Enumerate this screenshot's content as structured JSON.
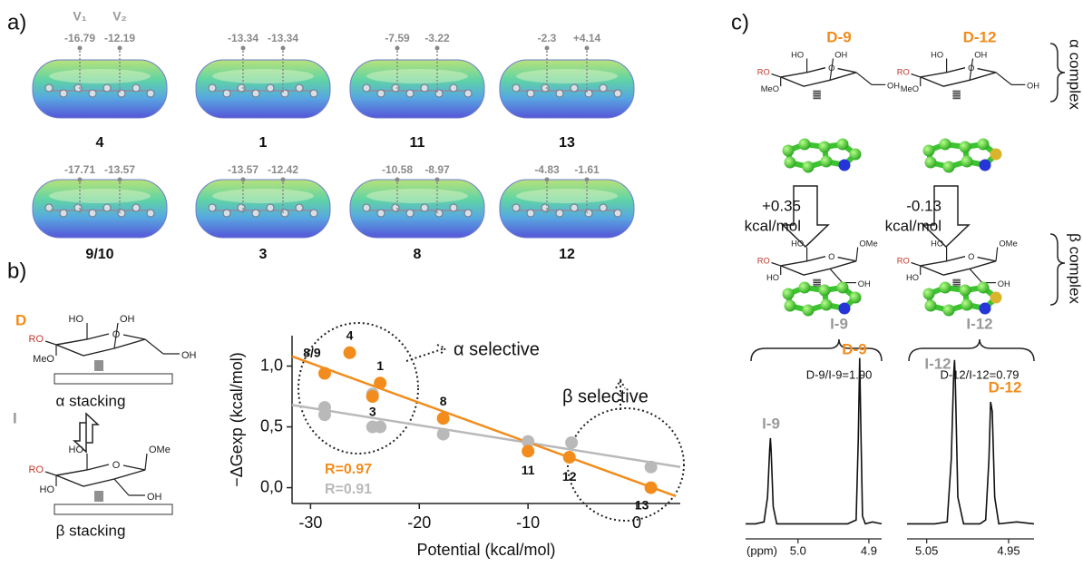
{
  "panel_a": {
    "label": "a)",
    "v_labels": [
      "V₁",
      "V₂"
    ],
    "molecules": [
      {
        "name": "4",
        "v": [
          "-16.79",
          "-12.19"
        ]
      },
      {
        "name": "1",
        "v": [
          "-13.34",
          "-13.34"
        ]
      },
      {
        "name": "11",
        "v": [
          "-7.59",
          "-3.22"
        ]
      },
      {
        "name": "13",
        "v": [
          "-2.3",
          "+4.14"
        ]
      },
      {
        "name": "9/10",
        "v": [
          "-17.71",
          "-13.57"
        ]
      },
      {
        "name": "3",
        "v": [
          "-13.57",
          "-12.42"
        ]
      },
      {
        "name": "8",
        "v": [
          "-10.58",
          "-8.97"
        ]
      },
      {
        "name": "12",
        "v": [
          "-4.83",
          "-1.61"
        ]
      }
    ]
  },
  "panel_b": {
    "label": "b)",
    "d_label": "D",
    "i_label": "I",
    "alpha_stacking": "α stacking",
    "beta_stacking": "β stacking"
  },
  "sugars": {
    "alpha": [
      "HO",
      "OH",
      "RO",
      "MeO",
      "O",
      "OH"
    ],
    "beta": [
      "HO",
      "OMe",
      "RO",
      "HO",
      "O",
      "OH"
    ]
  },
  "panel_c": {
    "label": "c)",
    "alpha_complex": "α complex",
    "beta_complex": "β complex",
    "complexes": [
      {
        "top": "D-9",
        "energy": "+0.35",
        "unit": "kcal/mol",
        "bottom": "I-9",
        "ratio": "D-9/I-9=1.90"
      },
      {
        "top": "D-12",
        "energy": "-0.13",
        "unit": "kcal/mol",
        "bottom": "I-12",
        "ratio": "D-12/I-12=0.79"
      }
    ]
  },
  "chart_data": [
    {
      "type": "scatter",
      "x_label": "Potential (kcal/mol)",
      "y_label": "−ΔGexp (kcal/mol)",
      "xlim": [
        -31.7,
        4
      ],
      "ylim": [
        -0.13,
        1.25
      ],
      "xticks": [
        -30,
        -20,
        -10,
        0
      ],
      "yticks": [
        {
          "value": 0,
          "label": "0,0"
        },
        {
          "value": 0.5,
          "label": "0,5"
        },
        {
          "value": 1,
          "label": "1,0"
        }
      ],
      "annotations": [
        "α selective",
        "β selective"
      ],
      "series": [
        {
          "color": "#f28c1c",
          "r_label": "R=0.97",
          "x": [
            -28.7,
            -26.4,
            -24.3,
            -23.6,
            -17.8,
            -10,
            -6.2,
            1.3
          ],
          "values": [
            0.94,
            1.11,
            0.75,
            0.86,
            0.57,
            0.3,
            0.25,
            0.0
          ],
          "point_labels": [
            "8/9",
            "4",
            "3",
            "1",
            "8",
            "11",
            "12",
            "13"
          ],
          "fit": {
            "x": [
              -31.7,
              3.6
            ],
            "values": [
              1.08,
              -0.07
            ]
          }
        },
        {
          "color": "#b9b9b9",
          "r_label": "R=0.91",
          "x": [
            -28.7,
            -28.7,
            -24.3,
            -24.3,
            -23.6,
            -17.8,
            -10,
            -6,
            1.3
          ],
          "values": [
            0.66,
            0.6,
            0.77,
            0.5,
            0.5,
            0.44,
            0.38,
            0.37,
            0.17
          ],
          "fit": {
            "x": [
              -31.7,
              4
            ],
            "values": [
              0.68,
              0.17
            ]
          }
        }
      ]
    },
    {
      "type": "line",
      "x_label": "(ppm)",
      "xlim": [
        5.074,
        4.882
      ],
      "ylim": [
        0,
        1
      ],
      "xticks": [
        {
          "value": 5,
          "label": "5.0"
        },
        4.9
      ],
      "color": "#111",
      "x": [
        5.074,
        5.06,
        5.048,
        5.043,
        5.04,
        5.039,
        5.038,
        5.035,
        5.03,
        5.0,
        4.95,
        4.93,
        4.918,
        4.915,
        4.913,
        4.911,
        4.909,
        4.905,
        4.895,
        4.882
      ],
      "values": [
        0.06,
        0.06,
        0.07,
        0.2,
        0.45,
        0.51,
        0.45,
        0.15,
        0.06,
        0.06,
        0.06,
        0.06,
        0.08,
        0.5,
        0.93,
        0.5,
        0.1,
        0.06,
        0.07,
        0.06
      ],
      "peak_labels": [
        {
          "text": "I-9",
          "color": "#9a9a9a"
        },
        {
          "text": "D-9",
          "color": "#f28c1c"
        }
      ]
    },
    {
      "type": "line",
      "xlim": [
        5.074,
        4.919
      ],
      "ylim": [
        0,
        1
      ],
      "xticks": [
        5.05,
        4.95
      ],
      "color": "#111",
      "x": [
        5.074,
        5.04,
        5.025,
        5.02,
        5.017,
        5.016,
        5.015,
        5.012,
        5.005,
        4.985,
        4.978,
        4.974,
        4.972,
        4.97,
        4.967,
        4.962,
        4.94,
        4.919
      ],
      "values": [
        0.06,
        0.06,
        0.07,
        0.4,
        0.85,
        0.92,
        0.8,
        0.2,
        0.06,
        0.06,
        0.08,
        0.4,
        0.7,
        0.65,
        0.2,
        0.06,
        0.07,
        0.06
      ],
      "peak_labels": [
        {
          "text": "I-12",
          "color": "#9a9a9a"
        },
        {
          "text": "D-12",
          "color": "#f28c1c"
        }
      ]
    }
  ]
}
